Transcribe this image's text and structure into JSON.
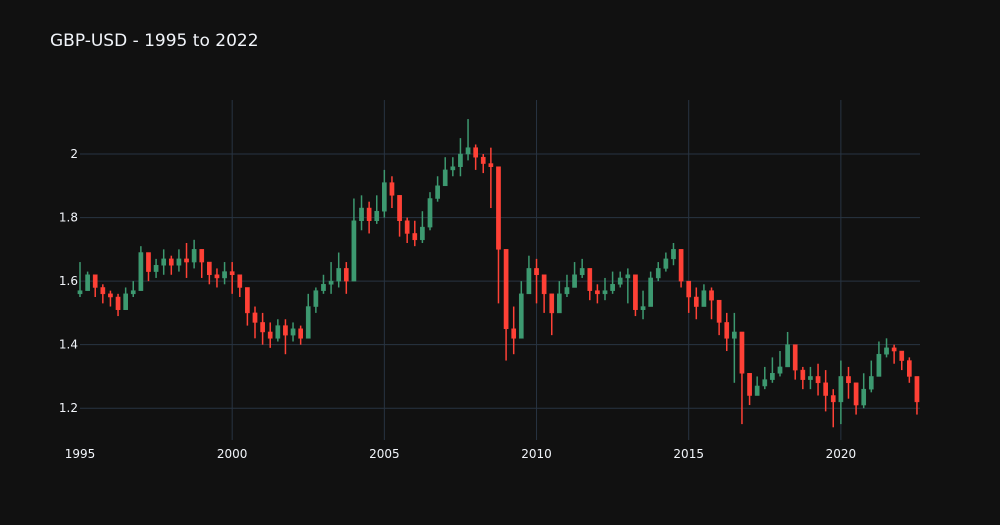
{
  "chart_data": {
    "type": "candlestick",
    "title": "GBP-USD - 1995 to 2022",
    "xlabel": "",
    "ylabel": "",
    "x_ticks": [
      "1995",
      "2000",
      "2005",
      "2010",
      "2015",
      "2020"
    ],
    "y_ticks": [
      "1.2",
      "1.4",
      "1.6",
      "1.8",
      "2"
    ],
    "xlim": [
      1995.0,
      2022.6
    ],
    "ylim": [
      1.1,
      2.17
    ],
    "grid": true,
    "legend": "none",
    "increasing_color": "#3D9970",
    "decreasing_color": "#FF4136",
    "x": [
      1995.0,
      1995.25,
      1995.5,
      1995.75,
      1996.0,
      1996.25,
      1996.5,
      1996.75,
      1997.0,
      1997.25,
      1997.5,
      1997.75,
      1998.0,
      1998.25,
      1998.5,
      1998.75,
      1999.0,
      1999.25,
      1999.5,
      1999.75,
      2000.0,
      2000.25,
      2000.5,
      2000.75,
      2001.0,
      2001.25,
      2001.5,
      2001.75,
      2002.0,
      2002.25,
      2002.5,
      2002.75,
      2003.0,
      2003.25,
      2003.5,
      2003.75,
      2004.0,
      2004.25,
      2004.5,
      2004.75,
      2005.0,
      2005.25,
      2005.5,
      2005.75,
      2006.0,
      2006.25,
      2006.5,
      2006.75,
      2007.0,
      2007.25,
      2007.5,
      2007.75,
      2008.0,
      2008.25,
      2008.5,
      2008.75,
      2009.0,
      2009.25,
      2009.5,
      2009.75,
      2010.0,
      2010.25,
      2010.5,
      2010.75,
      2011.0,
      2011.25,
      2011.5,
      2011.75,
      2012.0,
      2012.25,
      2012.5,
      2012.75,
      2013.0,
      2013.25,
      2013.5,
      2013.75,
      2014.0,
      2014.25,
      2014.5,
      2014.75,
      2015.0,
      2015.25,
      2015.5,
      2015.75,
      2016.0,
      2016.25,
      2016.5,
      2016.75,
      2017.0,
      2017.25,
      2017.5,
      2017.75,
      2018.0,
      2018.25,
      2018.5,
      2018.75,
      2019.0,
      2019.25,
      2019.5,
      2019.75,
      2020.0,
      2020.25,
      2020.5,
      2020.75,
      2021.0,
      2021.25,
      2021.5,
      2021.75,
      2022.0,
      2022.25,
      2022.5
    ],
    "close": [
      1.57,
      1.62,
      1.58,
      1.56,
      1.55,
      1.51,
      1.56,
      1.57,
      1.69,
      1.63,
      1.65,
      1.67,
      1.65,
      1.67,
      1.66,
      1.7,
      1.66,
      1.62,
      1.61,
      1.63,
      1.62,
      1.58,
      1.5,
      1.47,
      1.44,
      1.42,
      1.46,
      1.43,
      1.45,
      1.42,
      1.52,
      1.57,
      1.59,
      1.6,
      1.64,
      1.6,
      1.79,
      1.83,
      1.79,
      1.82,
      1.91,
      1.87,
      1.79,
      1.75,
      1.73,
      1.77,
      1.86,
      1.9,
      1.95,
      1.96,
      2.0,
      2.02,
      1.99,
      1.97,
      1.96,
      1.7,
      1.45,
      1.42,
      1.56,
      1.64,
      1.62,
      1.56,
      1.5,
      1.56,
      1.58,
      1.62,
      1.64,
      1.57,
      1.56,
      1.57,
      1.59,
      1.61,
      1.62,
      1.51,
      1.52,
      1.61,
      1.64,
      1.67,
      1.7,
      1.6,
      1.55,
      1.52,
      1.57,
      1.54,
      1.47,
      1.42,
      1.44,
      1.31,
      1.24,
      1.27,
      1.29,
      1.31,
      1.33,
      1.4,
      1.32,
      1.29,
      1.3,
      1.28,
      1.24,
      1.22,
      1.3,
      1.28,
      1.21,
      1.26,
      1.3,
      1.37,
      1.39,
      1.38,
      1.35,
      1.3,
      1.22
    ],
    "high": [
      1.66,
      1.63,
      1.62,
      1.59,
      1.57,
      1.56,
      1.58,
      1.6,
      1.71,
      1.66,
      1.67,
      1.7,
      1.68,
      1.7,
      1.72,
      1.73,
      1.68,
      1.66,
      1.64,
      1.66,
      1.66,
      1.62,
      1.56,
      1.52,
      1.5,
      1.47,
      1.48,
      1.48,
      1.47,
      1.46,
      1.56,
      1.58,
      1.62,
      1.66,
      1.69,
      1.66,
      1.86,
      1.87,
      1.85,
      1.87,
      1.95,
      1.93,
      1.84,
      1.8,
      1.79,
      1.82,
      1.88,
      1.93,
      1.99,
      1.99,
      2.05,
      2.11,
      2.03,
      2.0,
      2.02,
      1.88,
      1.55,
      1.52,
      1.6,
      1.68,
      1.67,
      1.62,
      1.55,
      1.6,
      1.62,
      1.66,
      1.67,
      1.64,
      1.59,
      1.61,
      1.63,
      1.63,
      1.64,
      1.58,
      1.57,
      1.63,
      1.66,
      1.69,
      1.72,
      1.68,
      1.6,
      1.58,
      1.59,
      1.58,
      1.52,
      1.5,
      1.5,
      1.35,
      1.29,
      1.3,
      1.33,
      1.36,
      1.38,
      1.44,
      1.4,
      1.33,
      1.33,
      1.34,
      1.32,
      1.26,
      1.35,
      1.33,
      1.28,
      1.31,
      1.35,
      1.41,
      1.42,
      1.4,
      1.38,
      1.36,
      1.27
    ],
    "low": [
      1.55,
      1.57,
      1.55,
      1.53,
      1.52,
      1.49,
      1.51,
      1.55,
      1.57,
      1.6,
      1.61,
      1.62,
      1.62,
      1.63,
      1.61,
      1.64,
      1.61,
      1.59,
      1.58,
      1.59,
      1.56,
      1.55,
      1.46,
      1.42,
      1.4,
      1.39,
      1.41,
      1.37,
      1.41,
      1.4,
      1.44,
      1.5,
      1.56,
      1.56,
      1.58,
      1.56,
      1.62,
      1.76,
      1.75,
      1.78,
      1.8,
      1.83,
      1.74,
      1.72,
      1.71,
      1.72,
      1.76,
      1.85,
      1.9,
      1.93,
      1.93,
      1.98,
      1.95,
      1.94,
      1.83,
      1.53,
      1.35,
      1.37,
      1.42,
      1.56,
      1.53,
      1.5,
      1.43,
      1.5,
      1.55,
      1.58,
      1.61,
      1.54,
      1.53,
      1.54,
      1.56,
      1.58,
      1.53,
      1.49,
      1.48,
      1.54,
      1.6,
      1.63,
      1.65,
      1.58,
      1.5,
      1.48,
      1.53,
      1.48,
      1.43,
      1.38,
      1.28,
      1.15,
      1.21,
      1.24,
      1.26,
      1.28,
      1.3,
      1.34,
      1.29,
      1.26,
      1.26,
      1.24,
      1.19,
      1.14,
      1.15,
      1.23,
      1.18,
      1.2,
      1.25,
      1.34,
      1.36,
      1.34,
      1.32,
      1.28,
      1.18
    ]
  }
}
